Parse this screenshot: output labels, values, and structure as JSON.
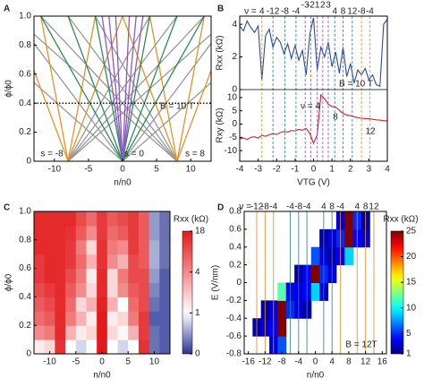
{
  "chart_data": [
    {
      "type": "line",
      "label": "A",
      "xlabel": "n/n0",
      "ylabel": "ϕ/ϕ0",
      "xlim": [
        -13,
        13
      ],
      "xticks": [
        -10,
        -5,
        0,
        5,
        10
      ],
      "ylim": [
        0,
        1
      ],
      "yticks": [
        0,
        0.2,
        0.4,
        0.6,
        0.8,
        {
          "value": 1,
          "label": "1.0"
        }
      ],
      "hline": 0.4,
      "annotations": [
        {
          "text": "B = 10 T",
          "color": "#000000"
        },
        {
          "text": "s = -8",
          "color": "#e8902a"
        },
        {
          "text": "s = 0",
          "color": "#2e8b57"
        },
        {
          "text": "s = 8",
          "color": "#e8902a"
        }
      ],
      "series": [
        {
          "color": "#999999",
          "x": [
            0,
            16
          ],
          "values": [
            0,
            1
          ]
        },
        {
          "color": "#999999",
          "x": [
            0,
            -16
          ],
          "values": [
            0,
            1
          ]
        },
        {
          "color": "#999999",
          "x": [
            0,
            24
          ],
          "values": [
            0,
            1
          ]
        },
        {
          "color": "#999999",
          "x": [
            0,
            -24
          ],
          "values": [
            0,
            1
          ]
        },
        {
          "color": "#999999",
          "x": [
            -8,
            4
          ],
          "values": [
            0,
            1
          ]
        },
        {
          "color": "#999999",
          "x": [
            -8,
            8
          ],
          "values": [
            0,
            1
          ]
        },
        {
          "color": "#999999",
          "x": [
            -8,
            12
          ],
          "values": [
            0,
            1
          ]
        },
        {
          "color": "#999999",
          "x": [
            -8,
            16
          ],
          "values": [
            0,
            1
          ]
        },
        {
          "color": "#999999",
          "x": [
            8,
            -4
          ],
          "values": [
            0,
            1
          ]
        },
        {
          "color": "#999999",
          "x": [
            8,
            -8
          ],
          "values": [
            0,
            1
          ]
        },
        {
          "color": "#999999",
          "x": [
            8,
            -12
          ],
          "values": [
            0,
            1
          ]
        },
        {
          "color": "#999999",
          "x": [
            8,
            -16
          ],
          "values": [
            0,
            1
          ]
        },
        {
          "color": "#e8902a",
          "x": [
            -8,
            -12
          ],
          "values": [
            0,
            1
          ]
        },
        {
          "color": "#e8902a",
          "x": [
            -8,
            -16
          ],
          "values": [
            0,
            1
          ]
        },
        {
          "color": "#e8902a",
          "x": [
            -8,
            -4
          ],
          "values": [
            0,
            1
          ]
        },
        {
          "color": "#e8902a",
          "x": [
            -8,
            0
          ],
          "values": [
            0,
            1
          ]
        },
        {
          "color": "#e8902a",
          "x": [
            8,
            12
          ],
          "values": [
            0,
            1
          ]
        },
        {
          "color": "#e8902a",
          "x": [
            8,
            16
          ],
          "values": [
            0,
            1
          ]
        },
        {
          "color": "#e8902a",
          "x": [
            8,
            4
          ],
          "values": [
            0,
            1
          ]
        },
        {
          "color": "#e8902a",
          "x": [
            8,
            0
          ],
          "values": [
            0,
            1
          ]
        },
        {
          "color": "#2e8b57",
          "x": [
            0,
            4
          ],
          "values": [
            0,
            1
          ]
        },
        {
          "color": "#2e8b57",
          "x": [
            0,
            -4
          ],
          "values": [
            0,
            1
          ]
        },
        {
          "color": "#2e8b57",
          "x": [
            0,
            8
          ],
          "values": [
            0,
            1
          ]
        },
        {
          "color": "#2e8b57",
          "x": [
            0,
            -8
          ],
          "values": [
            0,
            1
          ]
        },
        {
          "color": "#2e8b57",
          "x": [
            0,
            12
          ],
          "values": [
            0,
            1
          ]
        },
        {
          "color": "#2e8b57",
          "x": [
            0,
            -12
          ],
          "values": [
            0,
            1
          ]
        },
        {
          "color": "#8a5cc0",
          "x": [
            0,
            1
          ],
          "values": [
            0,
            1
          ]
        },
        {
          "color": "#8a5cc0",
          "x": [
            0,
            -1
          ],
          "values": [
            0,
            1
          ]
        },
        {
          "color": "#8a5cc0",
          "x": [
            0,
            2
          ],
          "values": [
            0,
            1
          ]
        },
        {
          "color": "#8a5cc0",
          "x": [
            0,
            -2
          ],
          "values": [
            0,
            1
          ]
        },
        {
          "color": "#8a5cc0",
          "x": [
            0,
            3
          ],
          "values": [
            0,
            1
          ]
        },
        {
          "color": "#8a5cc0",
          "x": [
            0,
            -3
          ],
          "values": [
            0,
            1
          ]
        }
      ]
    },
    {
      "type": "line",
      "label": "B",
      "xlabel": "VTG (V)",
      "ylabel": "Rxx (kΩ)",
      "y2label": "Rxy (kΩ)",
      "xlim": [
        -4,
        4
      ],
      "xticks": [
        -4,
        -3,
        -2,
        -1,
        0,
        1,
        2,
        3,
        4
      ],
      "ylim": [
        0,
        4.5
      ],
      "yticks": [
        0,
        2,
        4
      ],
      "y2lim": [
        -14,
        13
      ],
      "y2ticks": [
        -10,
        -5,
        0,
        5,
        10
      ],
      "vline_prefix": "ν =",
      "vlines": [
        {
          "color": "#e8902a",
          "x": [
            -2.8
          ],
          "labels": [
            "4"
          ]
        },
        {
          "color": "#2a8a8a",
          "x": [
            -2.2,
            -1.55,
            -0.95
          ],
          "labels": [
            "-12",
            "-8",
            "-4"
          ]
        },
        {
          "color": "#8a5cc0",
          "x": [
            -0.45,
            -0.15,
            0.2,
            0.5,
            0.8
          ],
          "labels": [
            "-3",
            "-2",
            "1",
            "2",
            "3"
          ]
        },
        {
          "color": "#2a8a8a",
          "x": [
            1.15,
            1.6,
            2.1
          ],
          "labels": [
            "4",
            "8",
            "12"
          ]
        },
        {
          "color": "#e8902a",
          "x": [
            2.6,
            3.05
          ],
          "labels": [
            "-8",
            "-4"
          ]
        }
      ],
      "annotations": [
        {
          "text": "B = 10 T",
          "color": "#000000"
        },
        {
          "text": "ν = 4",
          "color": "#000000"
        },
        {
          "text": "8",
          "color": "#000000"
        },
        {
          "text": "12",
          "color": "#000000"
        }
      ],
      "x": [
        -4,
        -3.8,
        -3.6,
        -3.4,
        -3.2,
        -3,
        -2.8,
        -2.6,
        -2.4,
        -2.2,
        -2,
        -1.8,
        -1.6,
        -1.4,
        -1.2,
        -1,
        -0.8,
        -0.6,
        -0.4,
        -0.2,
        0,
        0.2,
        0.4,
        0.6,
        0.8,
        1,
        1.2,
        1.4,
        1.6,
        1.8,
        2,
        2.2,
        2.4,
        2.6,
        2.8,
        3,
        3.2,
        3.4,
        3.6,
        3.8,
        4
      ],
      "series": [
        {
          "color": "#2b4a9c",
          "axis": "y",
          "values": [
            3.9,
            3.6,
            4.2,
            3.8,
            3.5,
            3.9,
            0.6,
            3.3,
            3.7,
            2.6,
            3.2,
            2.9,
            2.2,
            2.8,
            1.9,
            2.7,
            1.8,
            2.4,
            0.9,
            3.4,
            4.4,
            1.2,
            2.6,
            2,
            2.9,
            1.4,
            2.3,
            1,
            2.6,
            0.8,
            1.6,
            0.4,
            1.2,
            0.9,
            1.3,
            0.6,
            0.9,
            0.3,
            0.2,
            4,
            4.3
          ]
        },
        {
          "color": "#d42020",
          "axis": "y2",
          "values": [
            -5.5,
            -5.2,
            -5.8,
            -5,
            -4.8,
            -5.3,
            -4.2,
            -4.6,
            -4,
            -3.6,
            -3.9,
            -3.2,
            -2.8,
            -3,
            -2.4,
            -2.6,
            -2,
            -2.3,
            -1.6,
            -3.5,
            -7.2,
            -4,
            11,
            9.5,
            7.5,
            6.6,
            6.4,
            5.2,
            4,
            3.4,
            3.2,
            2.8,
            2.4,
            2.2,
            2.1,
            2,
            1.8,
            1.6,
            1.5,
            1.3,
            1.2
          ]
        }
      ]
    },
    {
      "type": "heatmap",
      "label": "C",
      "xlabel": "n/n0",
      "ylabel": "ϕ/ϕ0",
      "zlabel": "Rxx (kΩ)",
      "xlim": [
        -13,
        13
      ],
      "xticks": [
        -10,
        -5,
        0,
        5,
        10
      ],
      "ylim": [
        0,
        1
      ],
      "yticks": [
        0,
        0.2,
        0.4,
        0.6,
        0.8,
        {
          "value": 1,
          "label": "1.0"
        }
      ],
      "zlim": [
        0,
        18
      ],
      "zticks": [
        0,
        1,
        4,
        18
      ],
      "colorscale": [
        "#283593",
        "#ffffff",
        "#f28b8b",
        "#e31a1c"
      ],
      "x": [
        -12,
        -10,
        -8,
        -6,
        -4,
        -2,
        0,
        2,
        4,
        6,
        8,
        10,
        12
      ],
      "y": [
        0.05,
        0.15,
        0.25,
        0.35,
        0.45,
        0.55,
        0.65,
        0.75,
        0.85,
        0.95
      ],
      "z": [
        [
          1.5,
          2,
          15,
          1,
          0.8,
          1,
          18,
          1,
          0.8,
          1,
          15,
          0.3,
          0.2
        ],
        [
          4,
          6,
          16,
          3,
          1.5,
          2,
          18,
          2,
          1.2,
          3,
          14,
          0.3,
          0.2
        ],
        [
          8,
          10,
          16,
          6,
          3,
          1.5,
          18,
          1.5,
          2,
          6,
          14,
          0.2,
          0.2
        ],
        [
          10,
          12,
          16,
          8,
          2,
          3,
          17,
          3,
          1,
          8,
          12,
          0.3,
          0.2
        ],
        [
          12,
          14,
          16,
          10,
          4,
          2,
          16,
          2,
          4,
          10,
          12,
          0.4,
          0.2
        ],
        [
          14,
          16,
          16,
          12,
          6,
          1.5,
          16,
          2,
          6,
          12,
          12,
          0.5,
          0.2
        ],
        [
          14,
          16,
          16,
          14,
          8,
          3,
          15,
          4,
          3,
          12,
          10,
          0.6,
          0.3
        ],
        [
          16,
          16,
          16,
          14,
          6,
          2,
          15,
          6,
          4,
          14,
          10,
          0.6,
          0.3
        ],
        [
          16,
          16,
          16,
          15,
          10,
          4,
          14,
          8,
          10,
          14,
          10,
          0.5,
          0.3
        ],
        [
          16,
          16,
          16,
          16,
          12,
          8,
          14,
          10,
          12,
          14,
          10,
          0.5,
          0.3
        ]
      ]
    },
    {
      "type": "heatmap",
      "label": "D",
      "xlabel": "n/n0",
      "ylabel": "E (V/nm)",
      "zlabel": "Rxx (kΩ)",
      "xlim": [
        -17,
        17
      ],
      "xticks": [
        -16,
        -12,
        -8,
        -4,
        0,
        4,
        8,
        12,
        16
      ],
      "ylim": [
        -0.8,
        0.8
      ],
      "yticks": [
        -0.8,
        -0.6,
        -0.4,
        -0.2,
        0,
        0.2,
        0.4,
        0.6,
        0.8
      ],
      "zlim": [
        1,
        25
      ],
      "zticks": [
        1,
        5,
        10,
        15,
        20,
        25
      ],
      "colormap": "jet",
      "vline_prefix": "ν =",
      "vlines": [
        {
          "color": "#e8902a",
          "x": [
            -14,
            -12,
            -10
          ],
          "labels": [
            "-12",
            "-8",
            "-4"
          ]
        },
        {
          "color": "#2a8a8a",
          "x": [
            -6,
            -4,
            -2
          ],
          "labels": [
            "-4",
            "-8",
            "-4"
          ]
        },
        {
          "color": "#2a8a8a",
          "x": [
            2,
            4
          ],
          "labels": [
            "4",
            "8"
          ]
        },
        {
          "color": "#e8902a",
          "x": [
            6
          ],
          "labels": [
            "-4"
          ]
        },
        {
          "color": "#e8902a",
          "x": [
            10,
            12,
            14
          ],
          "labels": [
            "4",
            "8",
            "12"
          ]
        }
      ],
      "annotations": [
        {
          "text": "B = 12T",
          "color": "#000000"
        }
      ],
      "x": [
        -16,
        -14,
        -12,
        -10,
        -8,
        -6,
        -4,
        -2,
        0,
        2,
        4,
        6,
        8,
        10,
        12,
        14,
        16
      ],
      "y": [
        -0.7,
        -0.5,
        -0.3,
        -0.1,
        0.1,
        0.3,
        0.5,
        0.7
      ],
      "z": [
        [
          null,
          null,
          null,
          3,
          6,
          null,
          null,
          null,
          null,
          null,
          null,
          null,
          null,
          null,
          null,
          null,
          null
        ],
        [
          null,
          2,
          3,
          4,
          25,
          null,
          null,
          null,
          null,
          null,
          null,
          null,
          null,
          null,
          null,
          null,
          null
        ],
        [
          null,
          null,
          2,
          3,
          25,
          5,
          3,
          2,
          null,
          null,
          null,
          null,
          null,
          null,
          null,
          null,
          null
        ],
        [
          null,
          null,
          null,
          null,
          12,
          4,
          3,
          4,
          9,
          3,
          null,
          null,
          null,
          null,
          null,
          null,
          null
        ],
        [
          null,
          null,
          null,
          null,
          null,
          null,
          2,
          4,
          25,
          5,
          3,
          null,
          null,
          null,
          null,
          null,
          null
        ],
        [
          null,
          null,
          null,
          null,
          null,
          null,
          null,
          null,
          6,
          3,
          2,
          4,
          9,
          null,
          null,
          null,
          null
        ],
        [
          null,
          null,
          null,
          null,
          null,
          null,
          null,
          null,
          null,
          2,
          3,
          5,
          25,
          4,
          3,
          null,
          null
        ],
        [
          null,
          null,
          null,
          null,
          null,
          null,
          null,
          null,
          null,
          null,
          null,
          3,
          25,
          5,
          2,
          null,
          null
        ]
      ]
    }
  ]
}
